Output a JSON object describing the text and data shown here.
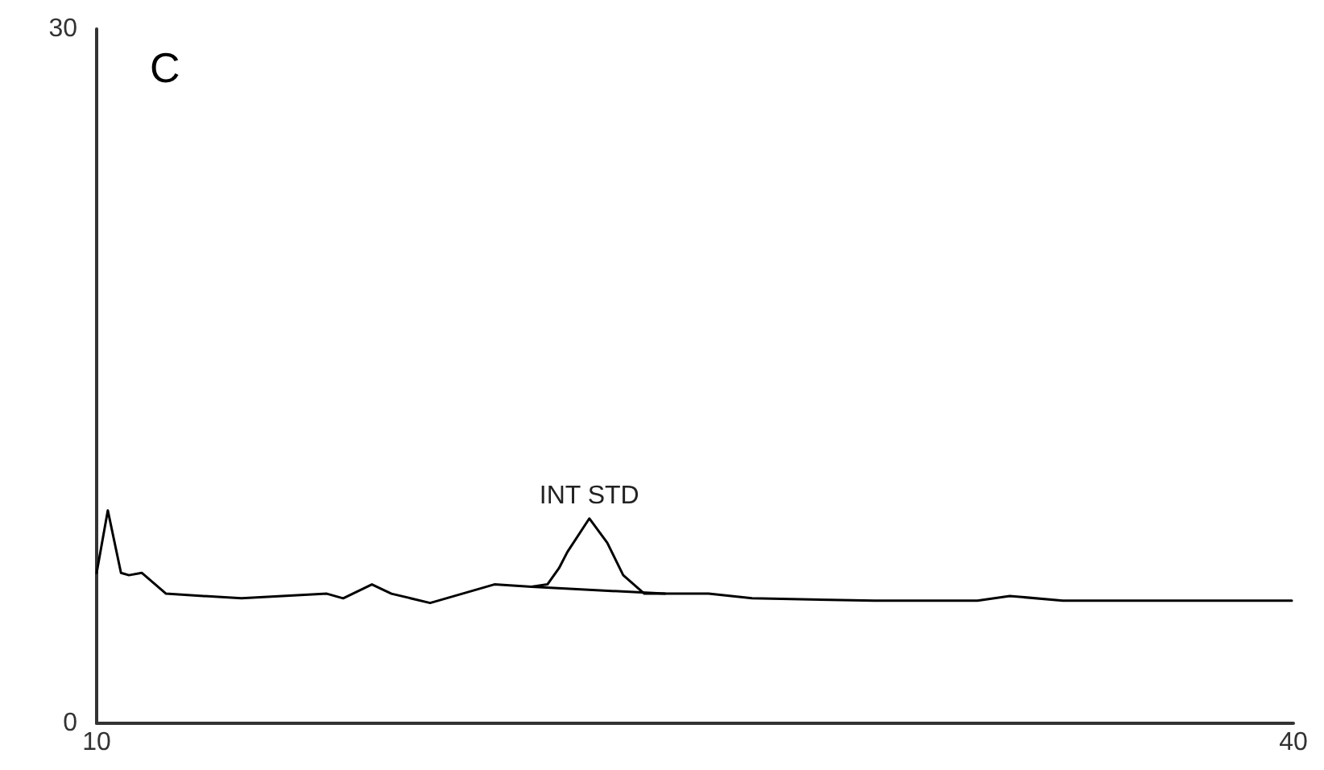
{
  "chart_data": {
    "type": "line",
    "title": "C",
    "xlim": [
      10,
      40
    ],
    "xticks": [
      10,
      40
    ],
    "ylim": [
      0,
      30
    ],
    "yticks": [
      0,
      30
    ],
    "grid": false,
    "marker": "none",
    "line_style": "solid",
    "annotations": [
      {
        "text": "INT STD",
        "x": 22.35,
        "y": 8.85
      }
    ],
    "series": [
      {
        "color": "#000000",
        "x": [
          10,
          10.28,
          10.61,
          10.81,
          11.13,
          11.74,
          13.63,
          15.77,
          16.18,
          16.9,
          17.39,
          18.36,
          19.97,
          20.9,
          21.3,
          21.59,
          21.8,
          22.35,
          22.8,
          23.2,
          23.73,
          24.25,
          25.34,
          26.43,
          29.5,
          32.08,
          32.89,
          34.22,
          39.96
        ],
        "values": [
          6.5,
          9.2,
          6.5,
          6.4,
          6.5,
          5.6,
          5.4,
          5.6,
          5.4,
          6,
          5.6,
          5.2,
          6,
          5.9,
          6,
          6.7,
          7.4,
          8.85,
          7.8,
          6.4,
          5.6,
          5.6,
          5.6,
          5.4,
          5.3,
          5.3,
          5.5,
          5.3,
          5.3
        ]
      },
      {
        "color": "#000000",
        "x": [
          20.9,
          24.25
        ],
        "values": [
          5.9,
          5.6
        ]
      }
    ]
  }
}
